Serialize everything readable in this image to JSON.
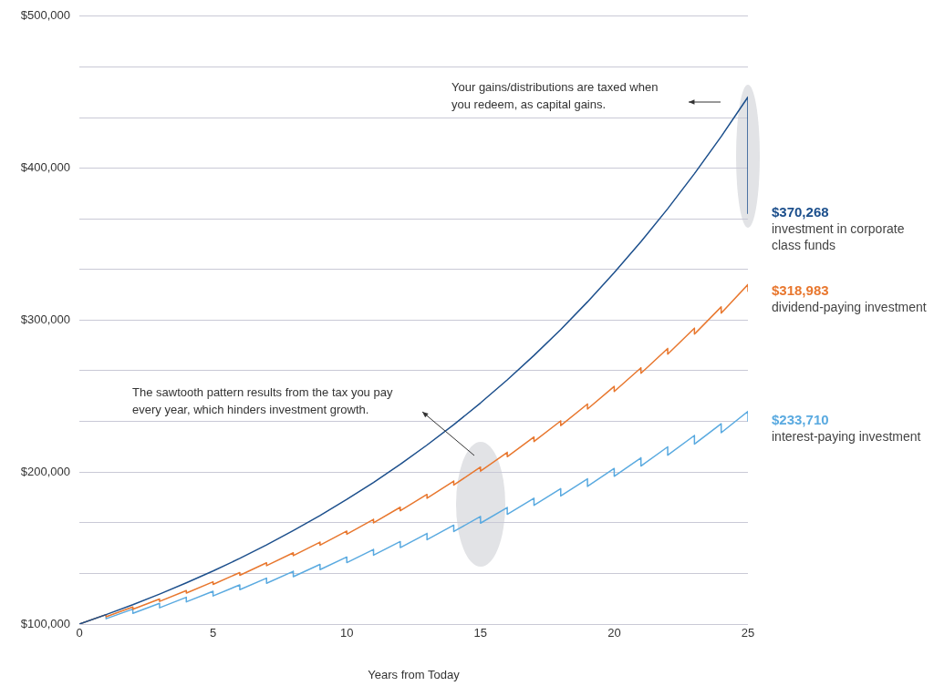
{
  "chart_data": {
    "type": "line",
    "xlabel": "Years from Today",
    "xlim": [
      0,
      25
    ],
    "xticks": [
      0,
      5,
      10,
      15,
      20,
      25
    ],
    "ylim": [
      100000,
      500000
    ],
    "yticks": [
      {
        "value": 100000,
        "label": "$100,000"
      },
      {
        "value": 133333,
        "label": null
      },
      {
        "value": 166667,
        "label": null
      },
      {
        "value": 200000,
        "label": "$200,000"
      },
      {
        "value": 233333,
        "label": null
      },
      {
        "value": 266667,
        "label": null
      },
      {
        "value": 300000,
        "label": "$300,000"
      },
      {
        "value": 333333,
        "label": null
      },
      {
        "value": 366667,
        "label": null
      },
      {
        "value": 400000,
        "label": "$400,000"
      },
      {
        "value": 433333,
        "label": null
      },
      {
        "value": 466667,
        "label": null
      },
      {
        "value": 500000,
        "label": "$500,000"
      }
    ],
    "grid": "y",
    "legend": false,
    "marker": "none",
    "series": [
      {
        "name": "investment in corporate class funds",
        "color": "#1c4f8c",
        "x": [
          0,
          1,
          2,
          3,
          4,
          5,
          6,
          7,
          8,
          9,
          10,
          11,
          12,
          13,
          14,
          15,
          16,
          17,
          18,
          19,
          20,
          21,
          22,
          23,
          24,
          25,
          25
        ],
        "values": [
          100000,
          106200,
          112700,
          119700,
          127100,
          134900,
          143200,
          152100,
          161500,
          171400,
          182000,
          193200,
          205100,
          217800,
          231200,
          245500,
          260700,
          276800,
          293800,
          312000,
          331200,
          351600,
          373300,
          396400,
          420800,
          446800,
          370268
        ],
        "value_labels": [
          null,
          null,
          null,
          null,
          null,
          null,
          null,
          null,
          null,
          null,
          null,
          null,
          null,
          null,
          null,
          null,
          null,
          null,
          null,
          null,
          null,
          null,
          null,
          null,
          null,
          null,
          "$370,268"
        ]
      },
      {
        "name": "dividend-paying investment",
        "color": "#e8772e",
        "x": [
          0,
          1,
          1,
          2,
          2,
          3,
          3,
          4,
          4,
          5,
          5,
          6,
          6,
          7,
          7,
          8,
          8,
          9,
          9,
          10,
          10,
          11,
          11,
          12,
          12,
          13,
          13,
          14,
          14,
          15,
          15,
          16,
          16,
          17,
          17,
          18,
          18,
          19,
          19,
          20,
          20,
          21,
          21,
          22,
          22,
          23,
          23,
          24,
          24,
          25,
          25
        ],
        "values": [
          100000,
          106200,
          104800,
          111200,
          109700,
          116500,
          114900,
          122000,
          120400,
          127800,
          126100,
          133900,
          132100,
          140300,
          138400,
          146900,
          145000,
          153900,
          151900,
          161200,
          159100,
          168900,
          166600,
          176900,
          174500,
          185300,
          182800,
          194100,
          191500,
          203300,
          200600,
          213000,
          210100,
          223100,
          220100,
          233700,
          230600,
          244800,
          241500,
          256400,
          253000,
          268600,
          265000,
          281400,
          277600,
          294700,
          290800,
          308700,
          304600,
          323400,
          318983
        ],
        "value_labels": [
          null,
          null,
          null,
          null,
          null,
          null,
          null,
          null,
          null,
          null,
          null,
          null,
          null,
          null,
          null,
          null,
          null,
          null,
          null,
          null,
          null,
          null,
          null,
          null,
          null,
          null,
          null,
          null,
          null,
          null,
          null,
          null,
          null,
          null,
          null,
          null,
          null,
          null,
          null,
          null,
          null,
          null,
          null,
          null,
          null,
          null,
          null,
          null,
          null,
          null,
          "$318,983"
        ]
      },
      {
        "name": "interest-paying investment",
        "color": "#5aaae0",
        "x": [
          0,
          1,
          1,
          2,
          2,
          3,
          3,
          4,
          4,
          5,
          5,
          6,
          6,
          7,
          7,
          8,
          8,
          9,
          9,
          10,
          10,
          11,
          11,
          12,
          12,
          13,
          13,
          14,
          14,
          15,
          15,
          16,
          16,
          17,
          17,
          18,
          18,
          19,
          19,
          20,
          20,
          21,
          21,
          22,
          22,
          23,
          23,
          24,
          24,
          25,
          25
        ],
        "values": [
          100000,
          106200,
          103500,
          109800,
          107000,
          113600,
          110700,
          117600,
          114600,
          121600,
          118500,
          125800,
          122600,
          130200,
          126800,
          134700,
          131200,
          139300,
          135800,
          144100,
          140400,
          149100,
          145300,
          154300,
          150300,
          159600,
          155500,
          165100,
          160900,
          170800,
          166400,
          176700,
          172200,
          182800,
          178100,
          189100,
          184300,
          195600,
          190600,
          202400,
          197200,
          209400,
          204000,
          216600,
          211100,
          224100,
          218400,
          231800,
          225900,
          239900,
          233710
        ],
        "value_labels": [
          null,
          null,
          null,
          null,
          null,
          null,
          null,
          null,
          null,
          null,
          null,
          null,
          null,
          null,
          null,
          null,
          null,
          null,
          null,
          null,
          null,
          null,
          null,
          null,
          null,
          null,
          null,
          null,
          null,
          null,
          null,
          null,
          null,
          null,
          null,
          null,
          null,
          null,
          null,
          null,
          null,
          null,
          null,
          null,
          null,
          null,
          null,
          null,
          null,
          null,
          "$233,710"
        ]
      }
    ],
    "annotations": [
      "Your gains/distributions are taxed when you redeem, as capital gains.",
      "The sawtooth pattern results from the tax you pay every year, which hinders investment growth."
    ]
  }
}
